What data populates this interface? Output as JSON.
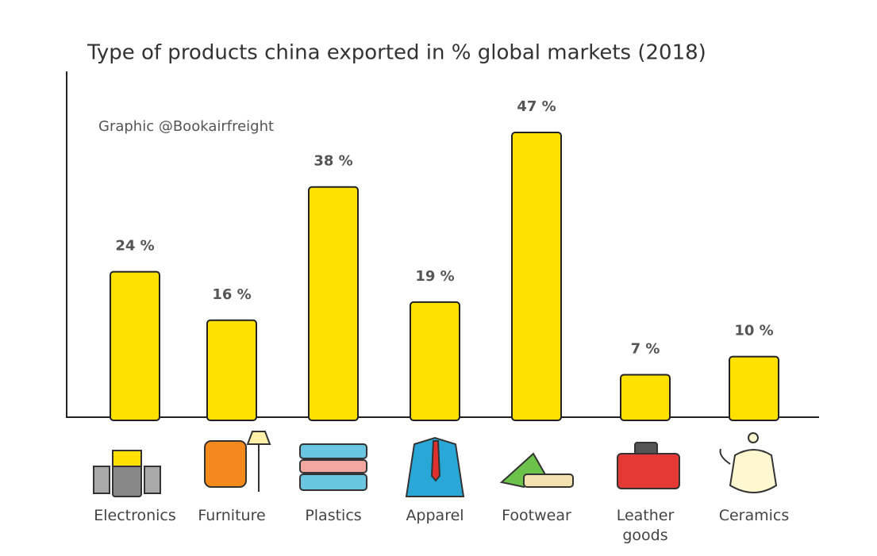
{
  "chart_data": {
    "type": "bar",
    "title": "Type of products china exported in % global markets (2018)",
    "subtitle": "Graphic @Bookairfreight",
    "categories": [
      "Electronics",
      "Furniture",
      "Plastics",
      "Apparel",
      "Footwear",
      "Leather goods",
      "Ceramics"
    ],
    "values": [
      24,
      16,
      38,
      19,
      47,
      7,
      10
    ],
    "value_labels": [
      "24 %",
      "16 %",
      "38 %",
      "19 %",
      "47 %",
      "7 %",
      "10 %"
    ],
    "color": "#ffe100"
  }
}
